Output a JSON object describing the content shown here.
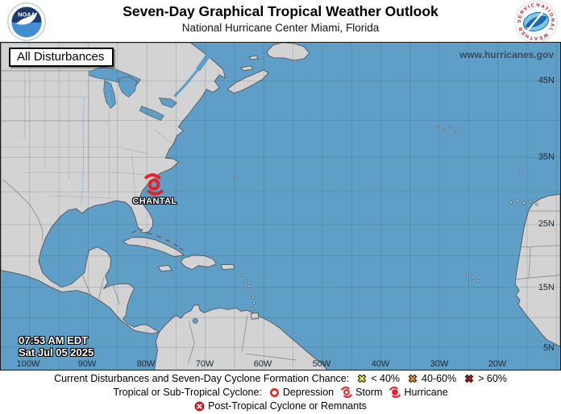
{
  "colors": {
    "ocean": "#5f9ec6",
    "land": "#d3d3d3",
    "cyclone_red": "#e3242b",
    "chance_low": "#f5f13c",
    "chance_medium": "#f2951d",
    "chance_high": "#b8151b",
    "link_text": "#3b4d59"
  },
  "header": {
    "title": "Seven-Day Graphical Tropical Weather Outlook",
    "subtitle": "National Hurricane Center  Miami, Florida",
    "noaa_logo_text": "NOAA",
    "nws_logo_text": "NATIONAL WEATHER SERVICE"
  },
  "map": {
    "mode_label": "All Disturbances",
    "website": "www.hurricanes.gov",
    "storm": {
      "name": "CHANTAL",
      "symbol": "tropical-storm"
    },
    "timestamp": {
      "time": "07:53 AM EDT",
      "date": "Sat Jul 05 2025"
    },
    "lat_labels": [
      "45N",
      "35N",
      "25N",
      "15N",
      "5N"
    ],
    "lon_labels": [
      "100W",
      "90W",
      "80W",
      "70W",
      "60W",
      "50W",
      "40W",
      "30W",
      "20W"
    ]
  },
  "legend": {
    "chance_line": {
      "label": "Current Disturbances and Seven-Day Cyclone Formation Chance:",
      "items": [
        {
          "symbol": "x-yellow",
          "label": "< 40%"
        },
        {
          "symbol": "x-orange",
          "label": "40-60%"
        },
        {
          "symbol": "x-red",
          "label": "> 60%"
        }
      ]
    },
    "cyclone_line": {
      "label": "Tropical or Sub-Tropical Cyclone:",
      "items": [
        {
          "symbol": "depression",
          "label": "Depression"
        },
        {
          "symbol": "storm",
          "label": "Storm"
        },
        {
          "symbol": "hurricane",
          "label": "Hurricane"
        }
      ]
    },
    "post_line": {
      "items": [
        {
          "symbol": "post-tropical",
          "label": "Post-Tropical Cyclone or Remnants"
        }
      ]
    }
  }
}
